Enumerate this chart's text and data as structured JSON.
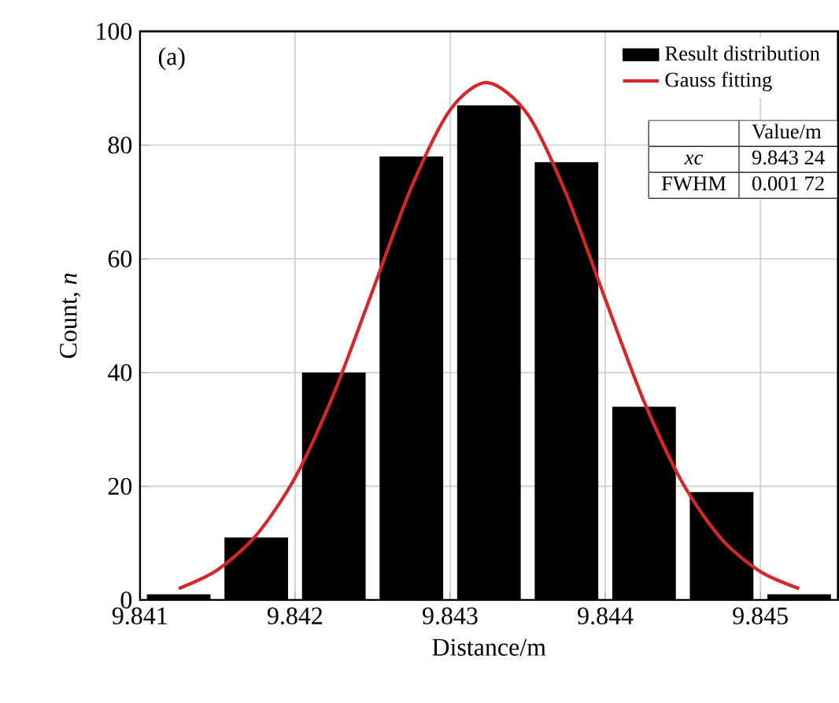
{
  "chart_data": {
    "type": "histogram",
    "xlabel": "Distance/m",
    "ylabel": "Count, *n*",
    "bins": [
      9.841,
      9.8415,
      9.842,
      9.8425,
      9.843,
      9.8435,
      9.844,
      9.8445,
      9.845,
      9.8455
    ],
    "series": [
      {
        "name": "Result distribution",
        "color": "#000000",
        "values": [
          1,
          11,
          40,
          78,
          87,
          77,
          34,
          19,
          1
        ]
      },
      {
        "name": "Gauss fitting",
        "type": "line",
        "color": "#d62728",
        "x": [
          9.84125,
          9.8415,
          9.84175,
          9.842,
          9.84225,
          9.8425,
          9.84275,
          9.843,
          9.84324,
          9.8435,
          9.84375,
          9.844,
          9.84425,
          9.8445,
          9.84475,
          9.845,
          9.84525
        ],
        "values": [
          2,
          5.3,
          11.4,
          21.5,
          36.3,
          54.4,
          72.6,
          86.2,
          91,
          85.4,
          71.3,
          52.9,
          34.9,
          20.5,
          10.7,
          5,
          2
        ]
      }
    ],
    "xlim": [
      9.841,
      9.8455
    ],
    "ylim": [
      0,
      100
    ],
    "xticks": [
      9.841,
      9.842,
      9.843,
      9.844,
      9.845
    ],
    "yticks": [
      0,
      20,
      40,
      60,
      80,
      100
    ],
    "grid": true,
    "legend": "top right",
    "annotations": [
      "(a)",
      "Value/m",
      "xc",
      "9.843 24",
      "FWHM",
      "0.001 72"
    ]
  }
}
